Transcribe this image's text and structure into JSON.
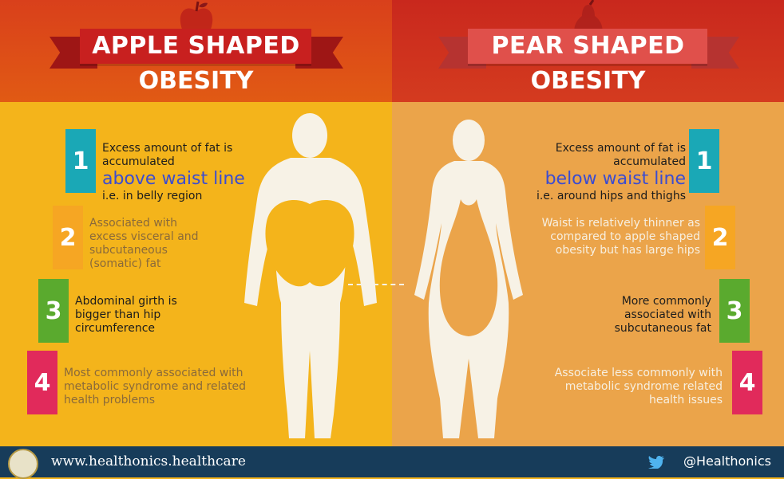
{
  "apple": {
    "title_line1": "APPLE SHAPED",
    "title_line2": "OBESITY",
    "points": [
      {
        "num": "1",
        "pre": "Excess amount of fat is accumulated",
        "highlight": "above waist line",
        "post": "i.e. in belly region"
      },
      {
        "num": "2",
        "text": "Associated with excess visceral and subcutaneous (somatic) fat"
      },
      {
        "num": "3",
        "text": "Abdominal girth is bigger than hip circumference"
      },
      {
        "num": "4",
        "text": "Most commonly associated with metabolic syndrome and related health problems"
      }
    ]
  },
  "pear": {
    "title_line1": "PEAR SHAPED",
    "title_line2": "OBESITY",
    "points": [
      {
        "num": "1",
        "pre": "Excess amount of fat is accumulated",
        "highlight": "below waist line",
        "post": "i.e. around hips and thighs"
      },
      {
        "num": "2",
        "text": "Waist is relatively thinner as compared to apple shaped obesity but has large hips"
      },
      {
        "num": "3",
        "text": "More commonly associated with subcutaneous fat"
      },
      {
        "num": "4",
        "text": "Associate less commonly with metabolic syndrome related health issues"
      }
    ]
  },
  "footer": {
    "url": "www.healthonics.healthcare",
    "handle": "@Healthonics"
  },
  "colors": {
    "badge1": "#1aa8b6",
    "badge2": "#f6a623",
    "badge3": "#5aaa2e",
    "badge4": "#e12a5b",
    "highlight": "#3b4cd1"
  }
}
